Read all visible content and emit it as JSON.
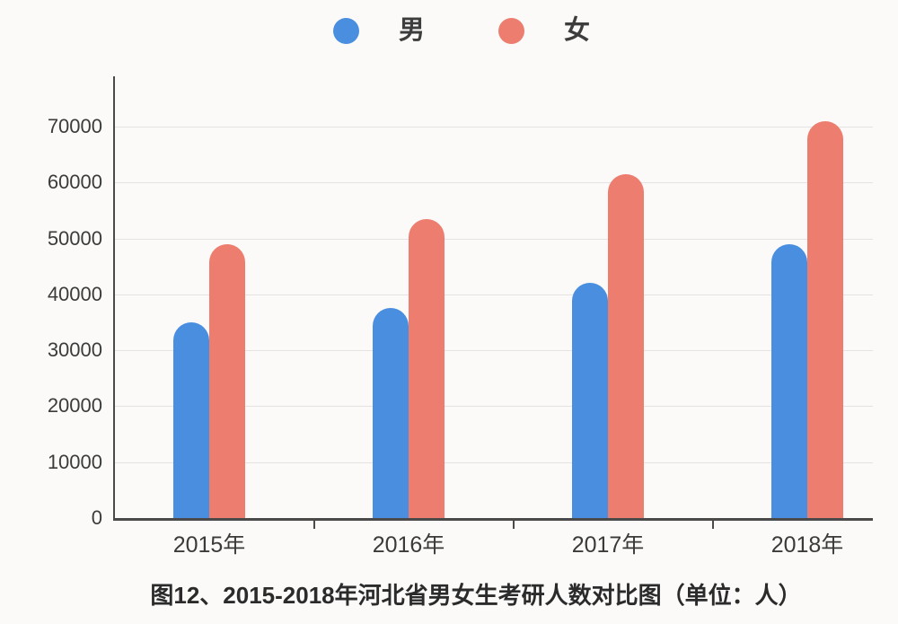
{
  "legend": {
    "items": [
      {
        "key": "male",
        "label": "男"
      },
      {
        "key": "female",
        "label": "女"
      }
    ]
  },
  "chart_data": {
    "type": "bar",
    "title": "图12、2015-2018年河北省男女生考研人数对比图（单位：人）",
    "categories": [
      "2015年",
      "2016年",
      "2017年",
      "2018年"
    ],
    "series": [
      {
        "key": "male",
        "name": "男",
        "color": "#4a8ee0",
        "values": [
          35000,
          37500,
          42000,
          49000
        ]
      },
      {
        "key": "female",
        "name": "女",
        "color": "#ed7d6e",
        "values": [
          49000,
          53500,
          61500,
          71000
        ]
      }
    ],
    "xlabel": "",
    "ylabel": "",
    "ylim": [
      0,
      70000
    ],
    "ytick_interval": 10000,
    "yticks": [
      "0",
      "10000",
      "20000",
      "30000",
      "40000",
      "50000",
      "60000",
      "70000"
    ],
    "grid": true,
    "legend_position": "top",
    "colors": {
      "axis": "#4a4a4a",
      "gridline": "#e4e3e1",
      "text": "#3b3b3b",
      "background": "#fbfaf9"
    }
  }
}
